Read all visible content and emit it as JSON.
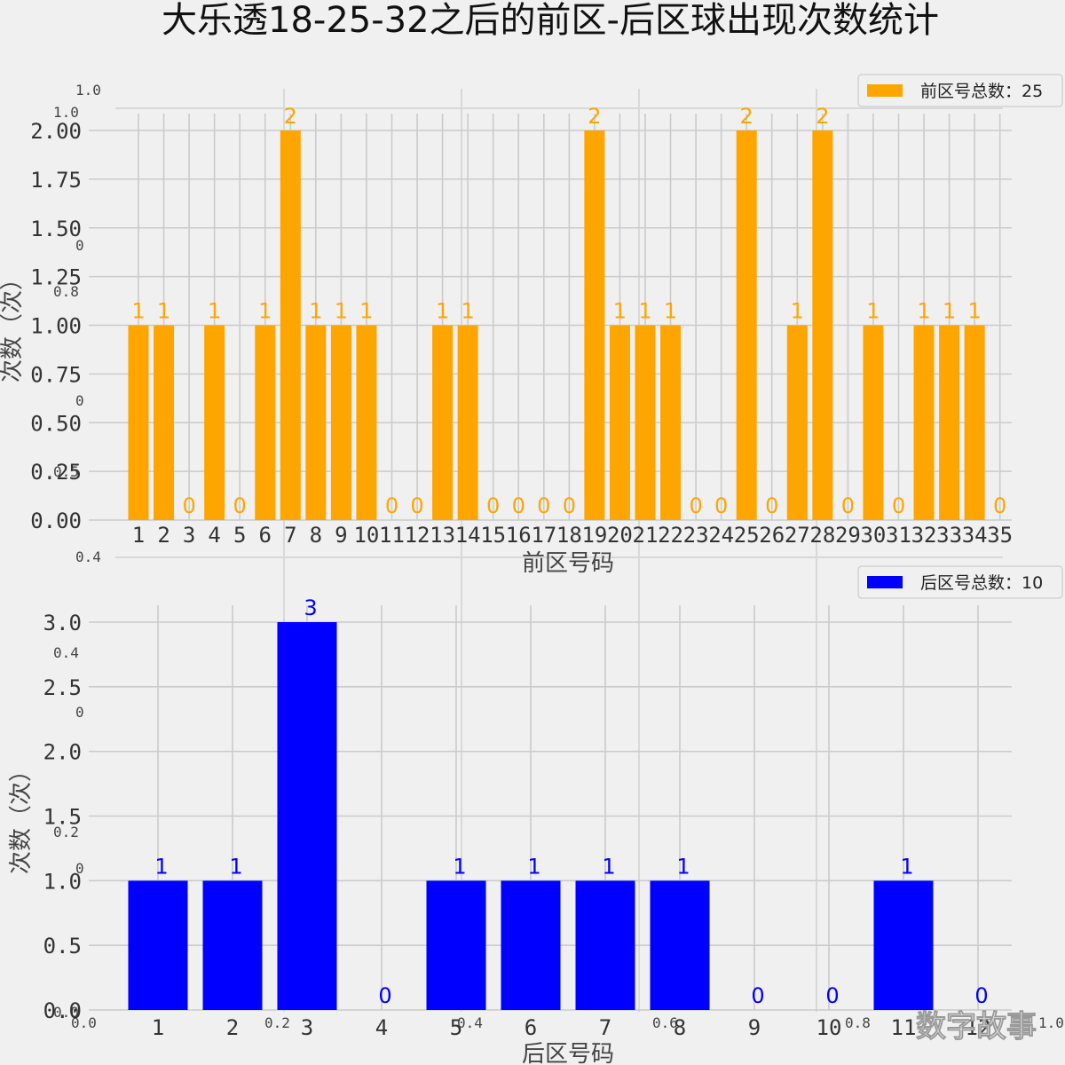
{
  "title": "大乐透18-25-32之后的前区-后区球出现次数统计",
  "watermark": "数字故事",
  "ghost_ticks": {
    "top_left": [
      "1.0",
      "1.0",
      "0",
      "0.8",
      "0",
      "0.5",
      "0.4"
    ],
    "mid_left": [
      "0.4",
      "0",
      "0.2",
      "0"
    ],
    "bottom": [
      "0.0",
      "0.0",
      "0.2",
      "0.4",
      "0.6",
      "0.8",
      "1.0"
    ]
  },
  "chart_data": [
    {
      "type": "bar",
      "categories": [
        "1",
        "2",
        "3",
        "4",
        "5",
        "6",
        "7",
        "8",
        "9",
        "10",
        "11",
        "12",
        "13",
        "14",
        "15",
        "16",
        "17",
        "18",
        "19",
        "20",
        "21",
        "22",
        "23",
        "24",
        "25",
        "26",
        "27",
        "28",
        "29",
        "30",
        "31",
        "32",
        "33",
        "34",
        "35"
      ],
      "series": [
        {
          "name": "前区号总数：25",
          "values": [
            1,
            1,
            0,
            1,
            0,
            1,
            2,
            1,
            1,
            1,
            0,
            0,
            1,
            1,
            0,
            0,
            0,
            0,
            2,
            1,
            1,
            1,
            0,
            0,
            2,
            0,
            1,
            2,
            0,
            1,
            0,
            1,
            1,
            1,
            0
          ]
        }
      ],
      "title": "",
      "xlabel": "前区号码",
      "ylabel": "次数（次）",
      "ylim": [
        0,
        2.0
      ],
      "yticks": [
        "0.00",
        "0.25",
        "0.50",
        "0.75",
        "1.00",
        "1.25",
        "1.50",
        "1.75",
        "2.00"
      ],
      "grid": true,
      "legend": "top-right",
      "color": "#ffa500"
    },
    {
      "type": "bar",
      "categories": [
        "1",
        "2",
        "3",
        "4",
        "5",
        "6",
        "7",
        "8",
        "9",
        "10",
        "11",
        "12"
      ],
      "series": [
        {
          "name": "后区号总数：10",
          "values": [
            1,
            1,
            3,
            0,
            1,
            1,
            1,
            1,
            0,
            0,
            1,
            0
          ]
        }
      ],
      "title": "",
      "xlabel": "后区号码",
      "ylabel": "次数（次）",
      "ylim": [
        0,
        3.0
      ],
      "yticks": [
        "0.0",
        "0.5",
        "1.0",
        "1.5",
        "2.0",
        "2.5",
        "3.0"
      ],
      "grid": true,
      "legend": "top-right",
      "color": "#0000ff"
    }
  ]
}
